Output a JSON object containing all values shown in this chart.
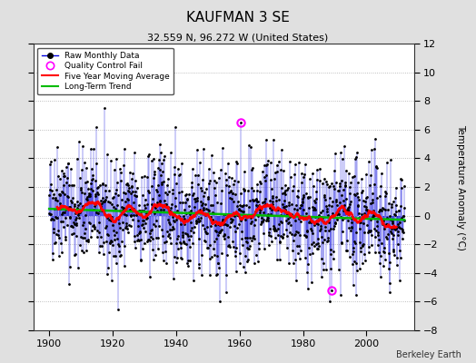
{
  "title": "KAUFMAN 3 SE",
  "subtitle": "32.559 N, 96.272 W (United States)",
  "ylabel": "Temperature Anomaly (°C)",
  "attribution": "Berkeley Earth",
  "xlim": [
    1895,
    2015
  ],
  "ylim": [
    -8,
    12
  ],
  "yticks": [
    -8,
    -6,
    -4,
    -2,
    0,
    2,
    4,
    6,
    8,
    10,
    12
  ],
  "xticks": [
    1900,
    1920,
    1940,
    1960,
    1980,
    2000
  ],
  "bg_color": "#e0e0e0",
  "plot_bg_color": "#ffffff",
  "raw_color": "#0000dd",
  "raw_marker_color": "#000000",
  "qc_fail_color": "#ff00ff",
  "moving_avg_color": "#ff0000",
  "trend_color": "#00bb00",
  "start_year": 1900,
  "end_year": 2012,
  "seed": 42,
  "qc_times": [
    1960.5,
    1989.0
  ],
  "qc_values": [
    6.5,
    -5.2
  ]
}
